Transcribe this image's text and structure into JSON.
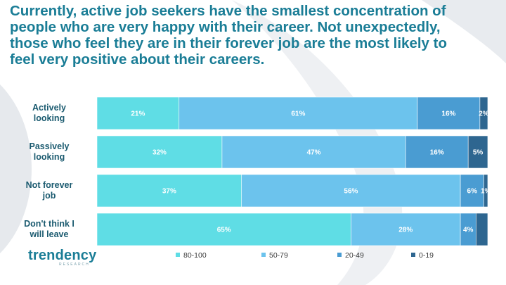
{
  "headline": "Currently, active job seekers have the smallest concentration of people who are very happy with their career. Not unexpectedly, those who feel they are in their forever job are the most likely to feel very positive about their careers.",
  "logo": {
    "name": "trendency",
    "sub": "RESEARCH"
  },
  "colors": {
    "accent": "#1a7d96",
    "series": [
      "#5fdde5",
      "#6cc3ed",
      "#4a9cd2",
      "#2e6690"
    ]
  },
  "chart_data": {
    "type": "bar",
    "orientation": "horizontal",
    "stacked": true,
    "percent": true,
    "categories": [
      "Actively looking",
      "Passively looking",
      "Not forever job",
      "Don't think I will leave"
    ],
    "category_lines": [
      [
        "Actively",
        "looking"
      ],
      [
        "Passively",
        "looking"
      ],
      [
        "Not forever",
        "job"
      ],
      [
        "Don't think I",
        "will leave"
      ]
    ],
    "series": [
      {
        "name": "80-100",
        "values": [
          21,
          32,
          37,
          65
        ],
        "labels": [
          "21%",
          "32%",
          "37%",
          "65%"
        ]
      },
      {
        "name": "50-79",
        "values": [
          61,
          47,
          56,
          28
        ],
        "labels": [
          "61%",
          "47%",
          "56%",
          "28%"
        ]
      },
      {
        "name": "20-49",
        "values": [
          16,
          16,
          6,
          4
        ],
        "labels": [
          "16%",
          "16%",
          "6%",
          "4%"
        ]
      },
      {
        "name": "0-19",
        "values": [
          2,
          5,
          1,
          3
        ],
        "labels": [
          "2%",
          "5%",
          "1%",
          ""
        ]
      }
    ],
    "xlim": [
      0,
      100
    ],
    "legend": "bottom"
  }
}
